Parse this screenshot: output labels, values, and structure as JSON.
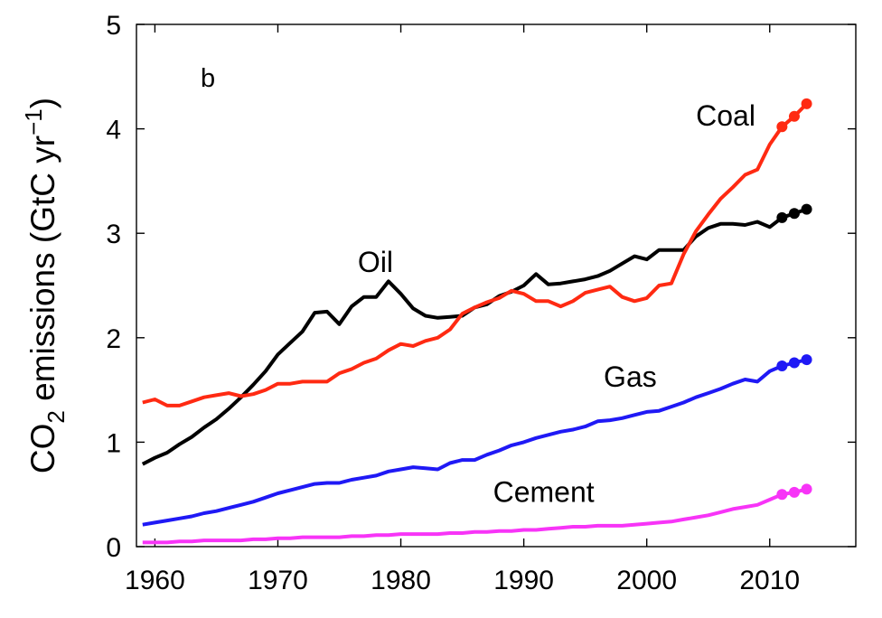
{
  "chart_data": {
    "type": "line",
    "panel_label": "b",
    "ylabel": {
      "prefix": "CO",
      "subscript": "2",
      "middle": " emissions (GtC yr",
      "superscript": "−1",
      "suffix": ")"
    },
    "xlabel": "",
    "xlim": [
      1958.5,
      2017
    ],
    "ylim": [
      0,
      5
    ],
    "xticks": [
      1960,
      1970,
      1980,
      1990,
      2000,
      2010
    ],
    "yticks": [
      0,
      1,
      2,
      3,
      4,
      5
    ],
    "grid": false,
    "legend": "none",
    "series": [
      {
        "name": "Oil",
        "color": "#000000",
        "x": [
          1959,
          1960,
          1961,
          1962,
          1963,
          1964,
          1965,
          1966,
          1967,
          1968,
          1969,
          1970,
          1971,
          1972,
          1973,
          1974,
          1975,
          1976,
          1977,
          1978,
          1979,
          1980,
          1981,
          1982,
          1983,
          1984,
          1985,
          1986,
          1987,
          1988,
          1989,
          1990,
          1991,
          1992,
          1993,
          1994,
          1995,
          1996,
          1997,
          1998,
          1999,
          2000,
          2001,
          2002,
          2003,
          2004,
          2005,
          2006,
          2007,
          2008,
          2009,
          2010,
          2011,
          2012,
          2013
        ],
        "y": [
          0.79,
          0.85,
          0.9,
          0.98,
          1.05,
          1.14,
          1.22,
          1.32,
          1.43,
          1.55,
          1.68,
          1.84,
          1.95,
          2.06,
          2.24,
          2.25,
          2.13,
          2.3,
          2.39,
          2.39,
          2.54,
          2.42,
          2.28,
          2.21,
          2.19,
          2.2,
          2.21,
          2.29,
          2.32,
          2.4,
          2.44,
          2.5,
          2.61,
          2.51,
          2.52,
          2.54,
          2.56,
          2.59,
          2.64,
          2.71,
          2.78,
          2.75,
          2.84,
          2.84,
          2.84,
          2.97,
          3.05,
          3.09,
          3.09,
          3.08,
          3.11,
          3.06,
          3.15,
          3.19,
          3.23
        ],
        "projected_x": [
          2011,
          2012,
          2013
        ],
        "projected_y": [
          3.15,
          3.19,
          3.23
        ]
      },
      {
        "name": "Coal",
        "color": "#ff2a12",
        "x": [
          1959,
          1960,
          1961,
          1962,
          1963,
          1964,
          1965,
          1966,
          1967,
          1968,
          1969,
          1970,
          1971,
          1972,
          1973,
          1974,
          1975,
          1976,
          1977,
          1978,
          1979,
          1980,
          1981,
          1982,
          1983,
          1984,
          1985,
          1986,
          1987,
          1988,
          1989,
          1990,
          1991,
          1992,
          1993,
          1994,
          1995,
          1996,
          1997,
          1998,
          1999,
          2000,
          2001,
          2002,
          2003,
          2004,
          2005,
          2006,
          2007,
          2008,
          2009,
          2010,
          2011,
          2012,
          2013
        ],
        "y": [
          1.38,
          1.41,
          1.35,
          1.35,
          1.39,
          1.43,
          1.45,
          1.47,
          1.44,
          1.46,
          1.5,
          1.56,
          1.56,
          1.58,
          1.58,
          1.58,
          1.66,
          1.7,
          1.76,
          1.8,
          1.88,
          1.94,
          1.92,
          1.97,
          2.0,
          2.08,
          2.23,
          2.29,
          2.34,
          2.38,
          2.45,
          2.42,
          2.35,
          2.35,
          2.3,
          2.35,
          2.43,
          2.46,
          2.49,
          2.39,
          2.35,
          2.38,
          2.5,
          2.52,
          2.8,
          3.02,
          3.18,
          3.33,
          3.44,
          3.56,
          3.61,
          3.85,
          4.02,
          4.12,
          4.24
        ],
        "projected_x": [
          2011,
          2012,
          2013
        ],
        "projected_y": [
          4.02,
          4.12,
          4.24
        ]
      },
      {
        "name": "Gas",
        "color": "#1f19f5",
        "x": [
          1959,
          1960,
          1961,
          1962,
          1963,
          1964,
          1965,
          1966,
          1967,
          1968,
          1969,
          1970,
          1971,
          1972,
          1973,
          1974,
          1975,
          1976,
          1977,
          1978,
          1979,
          1980,
          1981,
          1982,
          1983,
          1984,
          1985,
          1986,
          1987,
          1988,
          1989,
          1990,
          1991,
          1992,
          1993,
          1994,
          1995,
          1996,
          1997,
          1998,
          1999,
          2000,
          2001,
          2002,
          2003,
          2004,
          2005,
          2006,
          2007,
          2008,
          2009,
          2010,
          2011,
          2012,
          2013
        ],
        "y": [
          0.21,
          0.23,
          0.25,
          0.27,
          0.29,
          0.32,
          0.34,
          0.37,
          0.4,
          0.43,
          0.47,
          0.51,
          0.54,
          0.57,
          0.6,
          0.61,
          0.61,
          0.64,
          0.66,
          0.68,
          0.72,
          0.74,
          0.76,
          0.75,
          0.74,
          0.8,
          0.83,
          0.83,
          0.88,
          0.92,
          0.97,
          1.0,
          1.04,
          1.07,
          1.1,
          1.12,
          1.15,
          1.2,
          1.21,
          1.23,
          1.26,
          1.29,
          1.3,
          1.34,
          1.38,
          1.43,
          1.47,
          1.51,
          1.56,
          1.6,
          1.58,
          1.68,
          1.73,
          1.76,
          1.79
        ],
        "projected_x": [
          2011,
          2012,
          2013
        ],
        "projected_y": [
          1.73,
          1.76,
          1.79
        ]
      },
      {
        "name": "Cement",
        "color": "#f734f7",
        "x": [
          1959,
          1960,
          1961,
          1962,
          1963,
          1964,
          1965,
          1966,
          1967,
          1968,
          1969,
          1970,
          1971,
          1972,
          1973,
          1974,
          1975,
          1976,
          1977,
          1978,
          1979,
          1980,
          1981,
          1982,
          1983,
          1984,
          1985,
          1986,
          1987,
          1988,
          1989,
          1990,
          1991,
          1992,
          1993,
          1994,
          1995,
          1996,
          1997,
          1998,
          1999,
          2000,
          2001,
          2002,
          2003,
          2004,
          2005,
          2006,
          2007,
          2008,
          2009,
          2010,
          2011,
          2012,
          2013
        ],
        "y": [
          0.04,
          0.04,
          0.04,
          0.05,
          0.05,
          0.06,
          0.06,
          0.06,
          0.06,
          0.07,
          0.07,
          0.08,
          0.08,
          0.09,
          0.09,
          0.09,
          0.09,
          0.1,
          0.1,
          0.11,
          0.11,
          0.12,
          0.12,
          0.12,
          0.12,
          0.13,
          0.13,
          0.14,
          0.14,
          0.15,
          0.15,
          0.16,
          0.16,
          0.17,
          0.18,
          0.19,
          0.19,
          0.2,
          0.2,
          0.2,
          0.21,
          0.22,
          0.23,
          0.24,
          0.26,
          0.28,
          0.3,
          0.33,
          0.36,
          0.38,
          0.4,
          0.45,
          0.5,
          0.52,
          0.55
        ],
        "projected_x": [
          2011,
          2012,
          2013
        ],
        "projected_y": [
          0.5,
          0.52,
          0.55
        ]
      }
    ],
    "annotations": [
      {
        "text": "Oil",
        "x": 1976.5,
        "y": 2.63,
        "color": "#000000"
      },
      {
        "text": "Coal",
        "x": 2004,
        "y": 4.03,
        "color": "#000000"
      },
      {
        "text": "Gas",
        "x": 1996.5,
        "y": 1.53,
        "color": "#000000"
      },
      {
        "text": "Cement",
        "x": 1987.5,
        "y": 0.43,
        "color": "#000000"
      }
    ]
  }
}
